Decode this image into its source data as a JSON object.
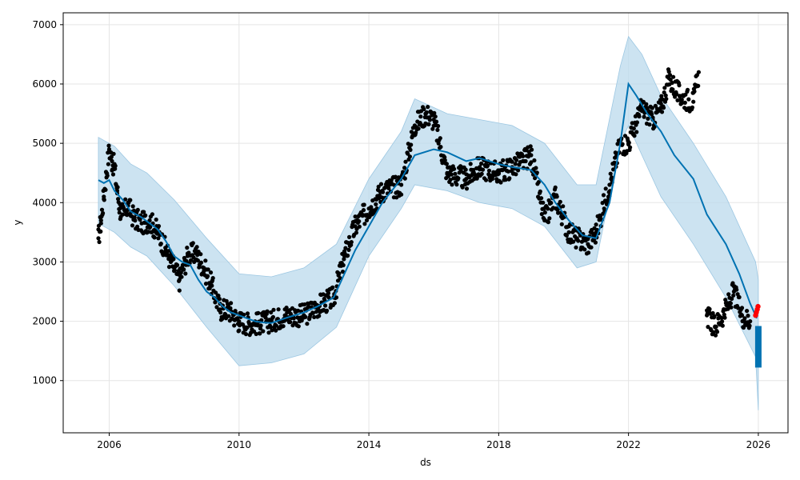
{
  "chart_data": {
    "type": "line",
    "title": "",
    "xlabel": "ds",
    "ylabel": "y",
    "xlim": [
      "2004-08-01",
      "2026-12-01"
    ],
    "ylim": [
      120,
      7200
    ],
    "grid": true,
    "x_ticks": [
      "2006",
      "2010",
      "2014",
      "2018",
      "2022",
      "2026"
    ],
    "y_ticks": [
      1000,
      2000,
      3000,
      4000,
      5000,
      6000,
      7000
    ],
    "colors": {
      "forecast_line": "#0072B2",
      "uncertainty_band": "#BBD9EC",
      "observed_points": "#000000",
      "recent_points": "#FF0000",
      "forecast_bar": "#0072B2",
      "grid": "#e5e5e5"
    },
    "series": [
      {
        "role": "forecast",
        "x": [
          "2005-09-01",
          "2005-11-01",
          "2006-01-01",
          "2006-03-01",
          "2006-06-01",
          "2006-09-01",
          "2007-01-01",
          "2007-04-01",
          "2007-07-01",
          "2007-10-01",
          "2008-01-01",
          "2008-04-01",
          "2008-07-01",
          "2008-10-01",
          "2009-01-01",
          "2009-04-01",
          "2009-07-01",
          "2009-10-01",
          "2010-01-01",
          "2010-04-01",
          "2010-07-01",
          "2010-10-01",
          "2011-01-01",
          "2011-06-01",
          "2012-01-01",
          "2012-06-01",
          "2012-12-01",
          "2013-04-01",
          "2013-08-01",
          "2014-01-01",
          "2014-06-01",
          "2015-01-01",
          "2015-06-01",
          "2016-01-01",
          "2016-06-01",
          "2017-01-01",
          "2017-06-01",
          "2018-01-01",
          "2018-06-01",
          "2019-01-01",
          "2019-06-01",
          "2019-10-01",
          "2020-03-01",
          "2020-08-01",
          "2021-01-01",
          "2021-06-01",
          "2021-10-01",
          "2022-01-01",
          "2022-04-01",
          "2022-08-01",
          "2023-01-01",
          "2023-06-01",
          "2024-01-01",
          "2024-06-01",
          "2025-01-01",
          "2025-06-01",
          "2025-10-01",
          "2025-12-15"
        ],
        "values": [
          4380,
          4330,
          4380,
          4200,
          4050,
          3850,
          3750,
          3650,
          3550,
          3350,
          3100,
          3000,
          2950,
          2700,
          2500,
          2400,
          2250,
          2150,
          2100,
          2050,
          2000,
          1980,
          1970,
          2050,
          2150,
          2250,
          2400,
          2800,
          3200,
          3600,
          4000,
          4400,
          4800,
          4900,
          4850,
          4700,
          4750,
          4650,
          4600,
          4550,
          4300,
          4000,
          3700,
          3450,
          3400,
          4000,
          5000,
          6000,
          5800,
          5500,
          5200,
          4800,
          4400,
          3800,
          3300,
          2800,
          2300,
          2050
        ]
      },
      {
        "role": "uncertainty_upper",
        "x": [
          "2005-09-01",
          "2006-03-01",
          "2006-09-01",
          "2007-03-01",
          "2008-01-01",
          "2009-01-01",
          "2010-01-01",
          "2011-01-01",
          "2012-01-01",
          "2013-01-01",
          "2014-01-01",
          "2015-01-01",
          "2015-06-01",
          "2016-06-01",
          "2017-06-01",
          "2018-06-01",
          "2019-06-01",
          "2020-06-01",
          "2021-01-01",
          "2021-10-01",
          "2022-01-01",
          "2022-06-01",
          "2023-01-01",
          "2024-01-01",
          "2025-01-01",
          "2025-12-01",
          "2026-01-01"
        ],
        "values": [
          5100,
          4950,
          4650,
          4500,
          4050,
          3400,
          2800,
          2750,
          2900,
          3300,
          4400,
          5200,
          5750,
          5500,
          5400,
          5300,
          5000,
          4300,
          4300,
          6300,
          6800,
          6500,
          5800,
          5000,
          4100,
          3000,
          2700
        ]
      },
      {
        "role": "uncertainty_lower",
        "x": [
          "2005-09-01",
          "2006-03-01",
          "2006-09-01",
          "2007-03-01",
          "2008-01-01",
          "2009-01-01",
          "2010-01-01",
          "2011-01-01",
          "2012-01-01",
          "2013-01-01",
          "2014-01-01",
          "2015-01-01",
          "2015-06-01",
          "2016-06-01",
          "2017-06-01",
          "2018-06-01",
          "2019-06-01",
          "2020-06-01",
          "2021-01-01",
          "2021-10-01",
          "2022-01-01",
          "2022-06-01",
          "2023-01-01",
          "2024-01-01",
          "2025-01-01",
          "2025-12-01",
          "2026-01-01"
        ],
        "values": [
          3650,
          3500,
          3250,
          3100,
          2600,
          1900,
          1250,
          1300,
          1450,
          1900,
          3100,
          3900,
          4300,
          4200,
          4000,
          3900,
          3600,
          2900,
          3000,
          5000,
          5300,
          4800,
          4100,
          3300,
          2400,
          1400,
          500
        ]
      },
      {
        "role": "observed",
        "x": [
          "2005-09-01",
          "2005-10-01",
          "2005-11-01",
          "2005-12-01",
          "2006-01-01",
          "2006-02-01",
          "2006-03-01",
          "2006-04-01",
          "2006-05-01",
          "2006-06-01",
          "2006-08-01",
          "2006-10-01",
          "2007-01-01",
          "2007-04-01",
          "2007-07-01",
          "2007-10-01",
          "2008-01-01",
          "2008-03-01",
          "2008-06-01",
          "2008-09-01",
          "2008-12-01",
          "2009-03-01",
          "2009-06-01",
          "2009-09-01",
          "2010-01-01",
          "2010-06-01",
          "2011-01-01",
          "2011-06-01",
          "2012-01-01",
          "2012-06-01",
          "2012-12-01",
          "2013-04-01",
          "2013-08-01",
          "2014-01-01",
          "2014-06-01",
          "2015-01-01",
          "2015-06-01",
          "2015-10-01",
          "2016-01-01",
          "2016-06-01",
          "2017-01-01",
          "2017-06-01",
          "2018-01-01",
          "2018-06-01",
          "2018-10-01",
          "2019-01-01",
          "2019-06-01",
          "2019-10-01",
          "2020-03-01",
          "2020-06-01",
          "2020-10-01",
          "2021-01-01",
          "2021-06-01",
          "2021-10-01",
          "2022-01-01",
          "2022-06-01",
          "2022-10-01",
          "2023-01-01",
          "2023-04-01",
          "2023-08-01",
          "2024-01-01",
          "2024-03-01",
          "2024-06-01",
          "2024-09-01",
          "2025-01-01",
          "2025-04-01",
          "2025-07-01",
          "2025-10-01"
        ],
        "values": [
          3400,
          3700,
          4100,
          4500,
          4900,
          4700,
          4600,
          4200,
          3900,
          3800,
          3950,
          3750,
          3650,
          3700,
          3500,
          3200,
          2900,
          2700,
          3100,
          3150,
          2900,
          2600,
          2200,
          2200,
          2000,
          1950,
          2000,
          2100,
          2100,
          2250,
          2400,
          3100,
          3600,
          3900,
          4200,
          4300,
          5300,
          5500,
          5400,
          4500,
          4400,
          4600,
          4500,
          4600,
          4700,
          4800,
          3700,
          4100,
          3500,
          3400,
          3300,
          3500,
          4300,
          5000,
          5000,
          5600,
          5400,
          5600,
          6100,
          5800,
          5700,
          6200,
          2100,
          1900,
          2200,
          2500,
          2100,
          2000
        ]
      },
      {
        "role": "recent",
        "x": [
          "2025-12-01",
          "2025-12-10",
          "2025-12-20",
          "2025-12-28"
        ],
        "values": [
          2100,
          2150,
          2200,
          2250
        ]
      },
      {
        "role": "forecast_range",
        "x": [
          "2026-01-01"
        ],
        "low": [
          1220
        ],
        "high": [
          1920
        ]
      }
    ]
  }
}
